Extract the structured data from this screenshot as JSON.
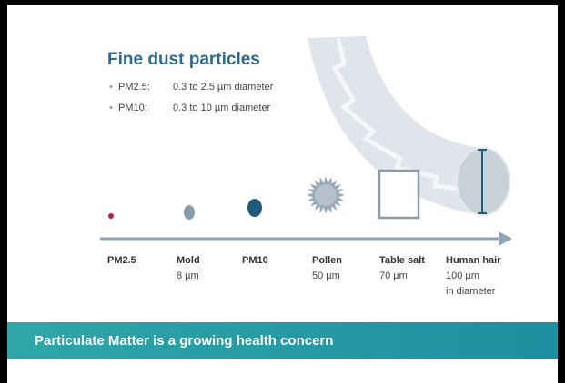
{
  "header": {
    "title": "Fine dust particles"
  },
  "bullets": [
    {
      "label": "PM2.5:",
      "text": "0.3 to 2.5 µm diameter"
    },
    {
      "label": "PM10:",
      "text": "0.3 to 10 µm diameter"
    }
  ],
  "items": [
    {
      "name": "PM2.5"
    },
    {
      "name": "Mold",
      "size": "8 µm"
    },
    {
      "name": "PM10"
    },
    {
      "name": "Pollen",
      "size": "50 µm"
    },
    {
      "name": "Table salt",
      "size": "70 µm"
    },
    {
      "name": "Human hair",
      "size": "100 µm",
      "note": "in diameter"
    }
  ],
  "banner": {
    "text": "Particulate Matter is a growing health concern"
  }
}
